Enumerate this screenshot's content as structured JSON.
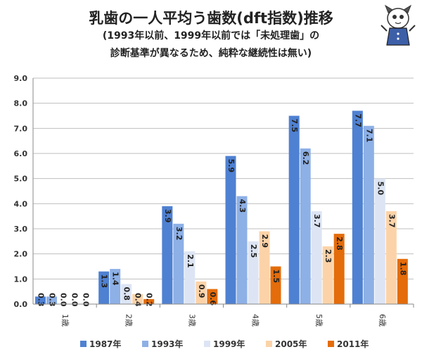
{
  "chart_data": {
    "type": "bar",
    "title": "乳歯の一人平均う歯数(dft指数)推移",
    "subtitle_line1": "(1993年以前、1999年以前では「未処理歯」の",
    "subtitle_line2": "診断基準が異なるため、純粋な継続性は無い)",
    "categories": [
      "1歳",
      "2歳",
      "3歳",
      "4歳",
      "5歳",
      "6歳"
    ],
    "series": [
      {
        "name": "1987年",
        "color": "#4f81d2",
        "values": [
          0.3,
          1.3,
          3.9,
          5.9,
          7.5,
          7.7
        ]
      },
      {
        "name": "1993年",
        "color": "#8db0e6",
        "values": [
          0.3,
          1.4,
          3.2,
          4.3,
          6.2,
          7.1
        ]
      },
      {
        "name": "1999年",
        "color": "#dde5f4",
        "values": [
          0.0,
          0.8,
          2.1,
          2.5,
          3.7,
          5.0
        ]
      },
      {
        "name": "2005年",
        "color": "#fcd3a8",
        "values": [
          0.0,
          0.4,
          0.9,
          2.9,
          2.3,
          3.7
        ]
      },
      {
        "name": "2011年",
        "color": "#e46c0a",
        "values": [
          0.0,
          0.2,
          0.6,
          1.5,
          2.8,
          1.8
        ]
      }
    ],
    "ylim": [
      0,
      9
    ],
    "yticks": [
      "0.0",
      "1.0",
      "2.0",
      "3.0",
      "4.0",
      "5.0",
      "6.0",
      "7.0",
      "8.0",
      "9.0"
    ],
    "legend_position": "bottom",
    "grid": true
  }
}
